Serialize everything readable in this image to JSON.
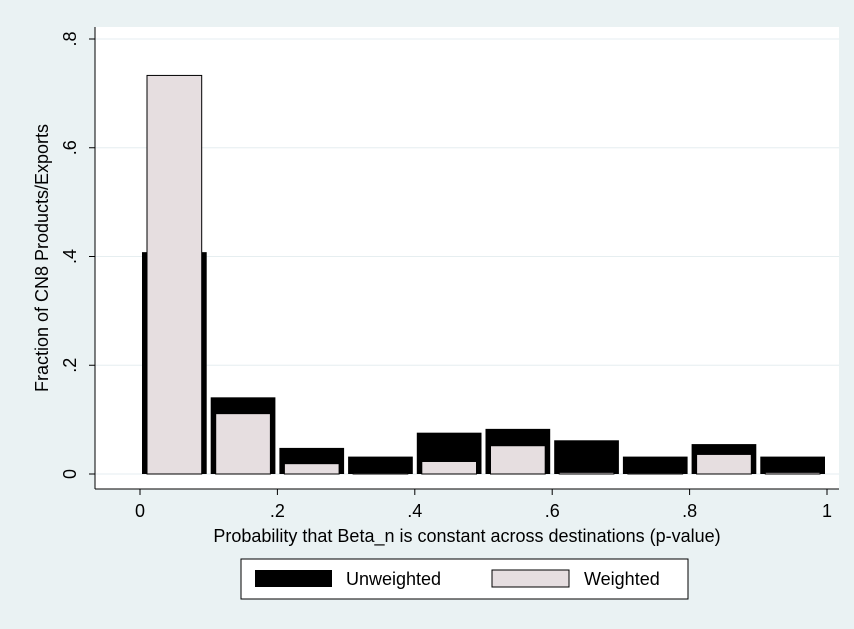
{
  "chart_data": {
    "type": "bar",
    "title": "",
    "xlabel": "Probability that Beta_n is constant across destinations (p-value)",
    "ylabel": "Fraction of CN8 Products/Exports",
    "xlim": [
      0,
      1
    ],
    "ylim": [
      0,
      0.8
    ],
    "x_ticks": [
      {
        "value": 0,
        "label": "0"
      },
      {
        "value": 0.2,
        "label": ".2"
      },
      {
        "value": 0.4,
        "label": ".4"
      },
      {
        "value": 0.6,
        "label": ".6"
      },
      {
        "value": 0.8,
        "label": ".8"
      },
      {
        "value": 1,
        "label": "1"
      }
    ],
    "y_ticks": [
      {
        "value": 0,
        "label": "0"
      },
      {
        "value": 0.2,
        "label": ".2"
      },
      {
        "value": 0.4,
        "label": ".4"
      },
      {
        "value": 0.6,
        "label": ".6"
      },
      {
        "value": 0.8,
        "label": ".8"
      }
    ],
    "grid": true,
    "bins": [
      {
        "from": 0.0,
        "to": 0.1
      },
      {
        "from": 0.1,
        "to": 0.2
      },
      {
        "from": 0.2,
        "to": 0.3
      },
      {
        "from": 0.3,
        "to": 0.4
      },
      {
        "from": 0.4,
        "to": 0.5
      },
      {
        "from": 0.5,
        "to": 0.6
      },
      {
        "from": 0.6,
        "to": 0.7
      },
      {
        "from": 0.7,
        "to": 0.8
      },
      {
        "from": 0.8,
        "to": 0.9
      },
      {
        "from": 0.9,
        "to": 1.0
      }
    ],
    "series": [
      {
        "name": "Unweighted",
        "color": "#000000",
        "values": [
          0.408,
          0.141,
          0.048,
          0.032,
          0.076,
          0.083,
          0.062,
          0.032,
          0.055,
          0.032
        ]
      },
      {
        "name": "Weighted",
        "color": "#e6dee0",
        "values": [
          0.733,
          0.111,
          0.019,
          0.002,
          0.023,
          0.052,
          0.003,
          0.002,
          0.036,
          0.003
        ]
      }
    ],
    "legend": {
      "position": "bottom",
      "items": [
        "Unweighted",
        "Weighted"
      ]
    }
  },
  "colors": {
    "background": "#eaf2f3",
    "plot_area": "#ffffff",
    "gridline": "#e6eef0",
    "unweighted": "#000000",
    "weighted": "#e6dee0"
  }
}
